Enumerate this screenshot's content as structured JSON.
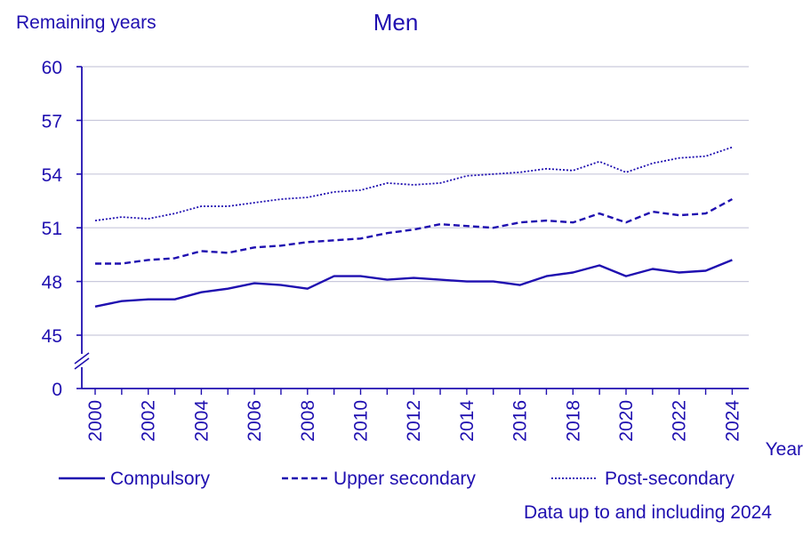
{
  "colors": {
    "ink": "#1f0fb0",
    "grid": "#c9c9dc"
  },
  "chart_data": {
    "type": "line",
    "title": "Men",
    "ylabel": "Remaining years",
    "xlabel": "Year",
    "ylim": [
      45,
      60
    ],
    "yticks": [
      "60",
      "57",
      "54",
      "51",
      "48",
      "45",
      "0"
    ],
    "y_axis_break": true,
    "grid": "horizontal",
    "legend_position": "bottom",
    "note": "Data up to and including 2024",
    "x": [
      2000,
      2001,
      2002,
      2003,
      2004,
      2005,
      2006,
      2007,
      2008,
      2009,
      2010,
      2011,
      2012,
      2013,
      2014,
      2015,
      2016,
      2017,
      2018,
      2019,
      2020,
      2021,
      2022,
      2023,
      2024
    ],
    "xtick_labels": [
      "2000",
      "2002",
      "2004",
      "2006",
      "2008",
      "2010",
      "2012",
      "2014",
      "2016",
      "2018",
      "2020",
      "2022",
      "2024"
    ],
    "series": [
      {
        "name": "Compulsory",
        "dash": "solid",
        "values": [
          46.6,
          46.9,
          47.0,
          47.0,
          47.4,
          47.6,
          47.9,
          47.8,
          47.6,
          48.3,
          48.3,
          48.1,
          48.2,
          48.1,
          48.0,
          48.0,
          47.8,
          48.3,
          48.5,
          48.9,
          48.3,
          48.7,
          48.5,
          48.6,
          49.2
        ]
      },
      {
        "name": "Upper secondary",
        "dash": "dashed",
        "values": [
          49.0,
          49.0,
          49.2,
          49.3,
          49.7,
          49.6,
          49.9,
          50.0,
          50.2,
          50.3,
          50.4,
          50.7,
          50.9,
          51.2,
          51.1,
          51.0,
          51.3,
          51.4,
          51.3,
          51.8,
          51.3,
          51.9,
          51.7,
          51.8,
          52.6
        ]
      },
      {
        "name": "Post-secondary",
        "dash": "dotted",
        "values": [
          51.4,
          51.6,
          51.5,
          51.8,
          52.2,
          52.2,
          52.4,
          52.6,
          52.7,
          53.0,
          53.1,
          53.5,
          53.4,
          53.5,
          53.9,
          54.0,
          54.1,
          54.3,
          54.2,
          54.7,
          54.1,
          54.6,
          54.9,
          55.0,
          55.5
        ]
      }
    ]
  }
}
